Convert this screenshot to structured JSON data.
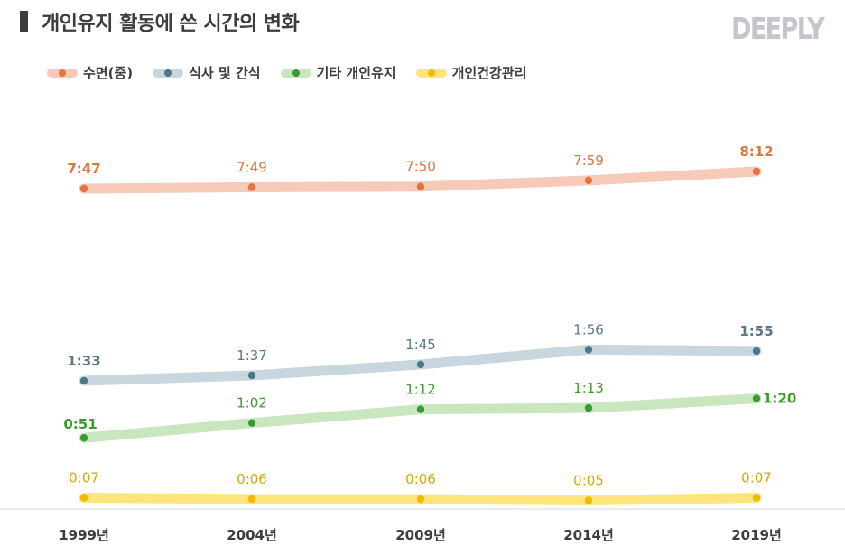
{
  "title": "개인유지 활동에 쓴 시간의 변화",
  "logo": "DEEPLY",
  "chart_data": {
    "type": "line",
    "categories": [
      "1999년",
      "2004년",
      "2009년",
      "2014년",
      "2019년"
    ],
    "series": [
      {
        "name": "수면(중)",
        "values": [
          467,
          469,
          470,
          479,
          492
        ],
        "labels": [
          "7:47",
          "7:49",
          "7:50",
          "7:59",
          "8:12"
        ],
        "line_color": "#f6c9b8",
        "dot_color": "#e5733f",
        "label_color": "#d9773f"
      },
      {
        "name": "식사 및 간식",
        "values": [
          93,
          97,
          105,
          116,
          115
        ],
        "labels": [
          "1:33",
          "1:37",
          "1:45",
          "1:56",
          "1:55"
        ],
        "line_color": "#c8d6de",
        "dot_color": "#4c7786",
        "label_color": "#5b7884"
      },
      {
        "name": "기타 개인유지",
        "values": [
          51,
          62,
          72,
          73,
          80
        ],
        "labels": [
          "0:51",
          "1:02",
          "1:12",
          "1:13",
          "1:20"
        ],
        "line_color": "#c9e6bf",
        "dot_color": "#3a9a2e",
        "label_color": "#3d9a2d"
      },
      {
        "name": "개인건강관리",
        "values": [
          7,
          6,
          6,
          5,
          7
        ],
        "labels": [
          "0:07",
          "0:06",
          "0:06",
          "0:05",
          "0:07"
        ],
        "line_color": "#fde47c",
        "dot_color": "#f5b800",
        "label_color": "#d8a800"
      }
    ],
    "ylim": [
      0,
      500
    ],
    "grid": false,
    "legend_position": "top-left"
  }
}
